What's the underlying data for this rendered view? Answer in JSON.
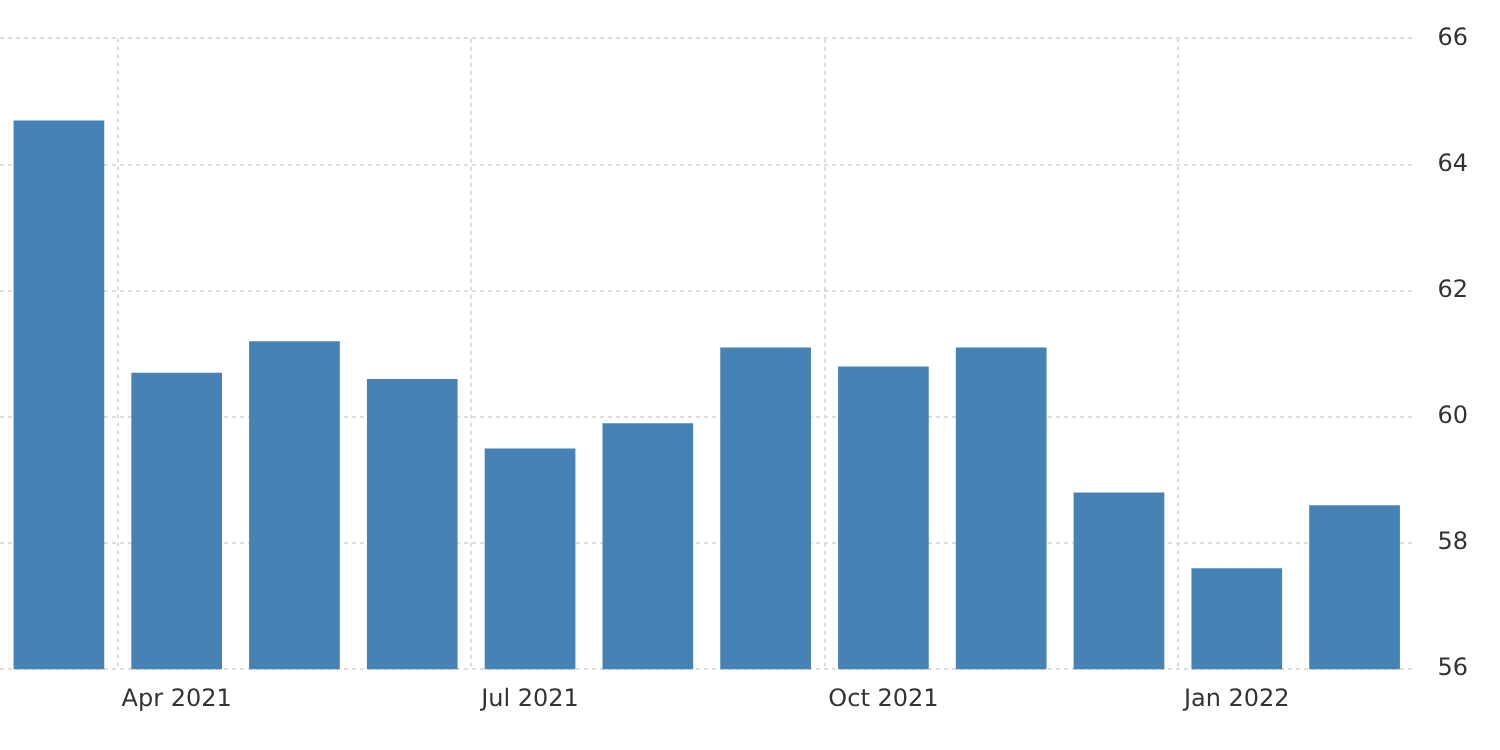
{
  "chart_data": {
    "type": "bar",
    "categories": [
      null,
      "Apr 2021",
      null,
      null,
      "Jul 2021",
      null,
      null,
      "Oct 2021",
      null,
      null,
      "Jan 2022",
      null
    ],
    "values": [
      64.7,
      60.7,
      61.2,
      60.6,
      59.5,
      59.9,
      61.1,
      60.8,
      61.1,
      58.8,
      57.6,
      58.6
    ],
    "color": "#4682b4",
    "ylim": [
      56,
      66
    ],
    "yticks": [
      56,
      58,
      60,
      62,
      64,
      66
    ],
    "grid": true,
    "legend": false
  }
}
